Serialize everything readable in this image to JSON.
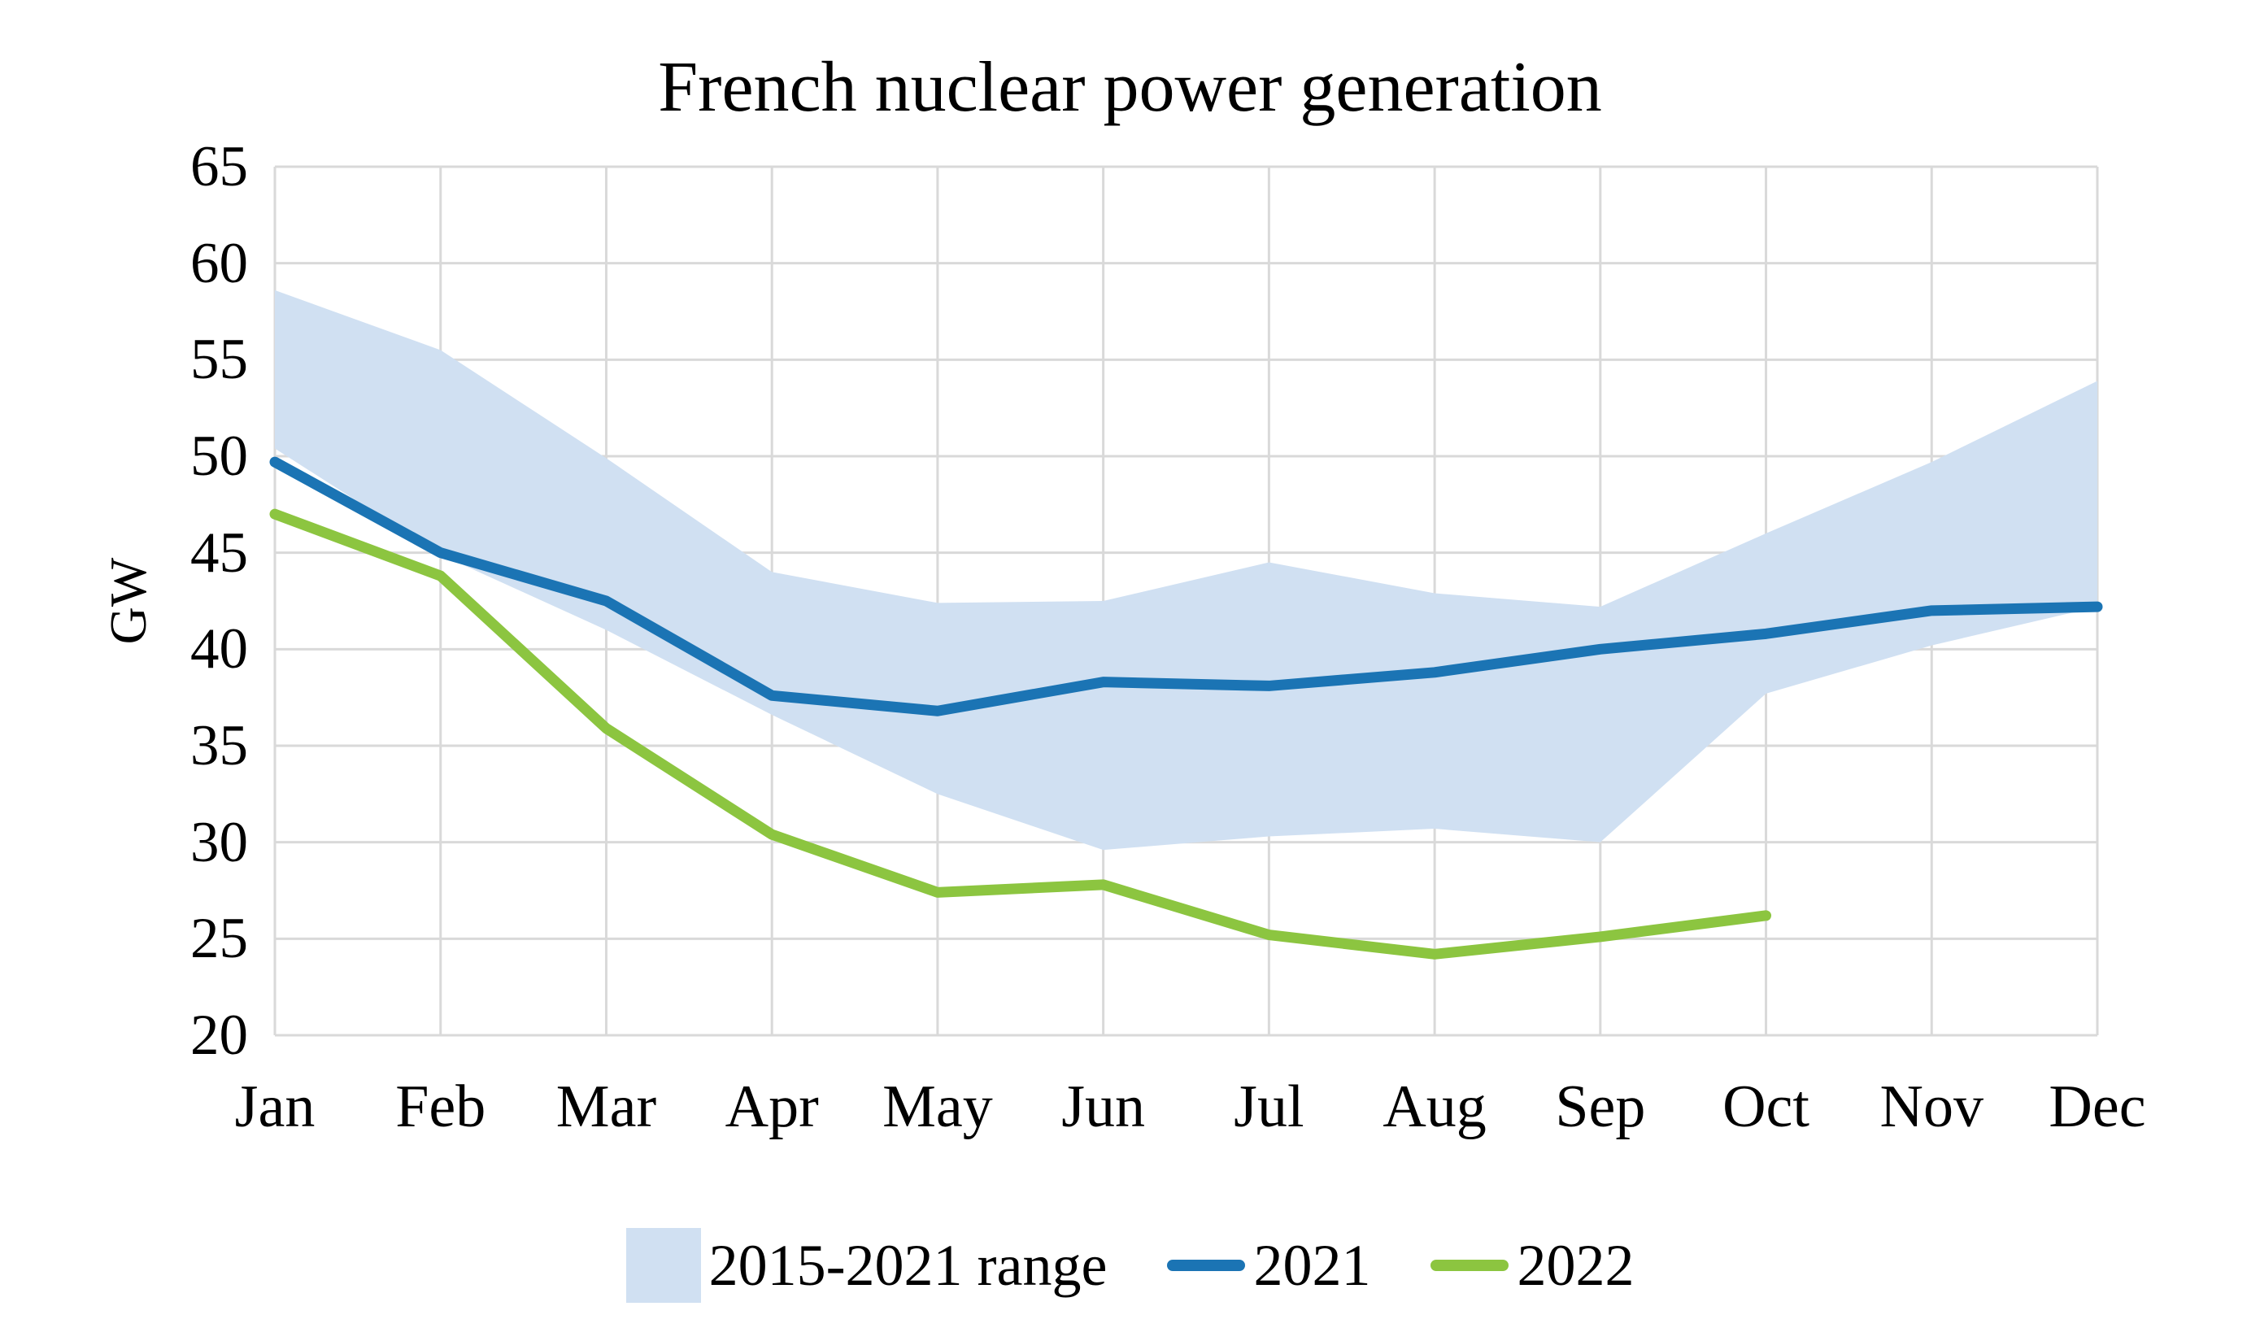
{
  "title": "French nuclear power generation",
  "colors": {
    "band": "#d0e0f2",
    "line2021": "#1b74b4",
    "line2022": "#8cc540",
    "grid": "#d9d9d9",
    "text": "#000000",
    "background": "#ffffff"
  },
  "chart_data": {
    "type": "line",
    "title": "French nuclear power generation",
    "xlabel": "",
    "ylabel": "GW",
    "ylim": [
      20,
      65
    ],
    "y_tick_step": 5,
    "grid": true,
    "legend_position": "bottom",
    "categories": [
      "Jan",
      "Feb",
      "Mar",
      "Apr",
      "May",
      "Jun",
      "Jul",
      "Aug",
      "Sep",
      "Oct",
      "Nov",
      "Dec"
    ],
    "band": {
      "name": "2015-2021 range",
      "upper": [
        58.6,
        55.5,
        49.9,
        44.0,
        42.4,
        42.5,
        44.5,
        42.9,
        42.2,
        46.0,
        49.7,
        53.9
      ],
      "lower": [
        50.4,
        44.9,
        41.0,
        36.6,
        32.5,
        29.6,
        30.3,
        30.7,
        30.0,
        37.7,
        40.2,
        42.2
      ]
    },
    "series": [
      {
        "name": "2021",
        "values": [
          49.7,
          45.0,
          42.5,
          37.6,
          36.8,
          38.3,
          38.1,
          38.8,
          40.0,
          40.8,
          42.0,
          42.2
        ]
      },
      {
        "name": "2022",
        "values": [
          47.0,
          43.8,
          35.9,
          30.4,
          27.4,
          27.8,
          25.2,
          24.2,
          25.1,
          26.2
        ]
      }
    ]
  },
  "legend": {
    "items": [
      {
        "label": "2015-2021 range",
        "swatch": "area"
      },
      {
        "label": "2021",
        "swatch": "line2021"
      },
      {
        "label": "2022",
        "swatch": "line2022"
      }
    ]
  }
}
